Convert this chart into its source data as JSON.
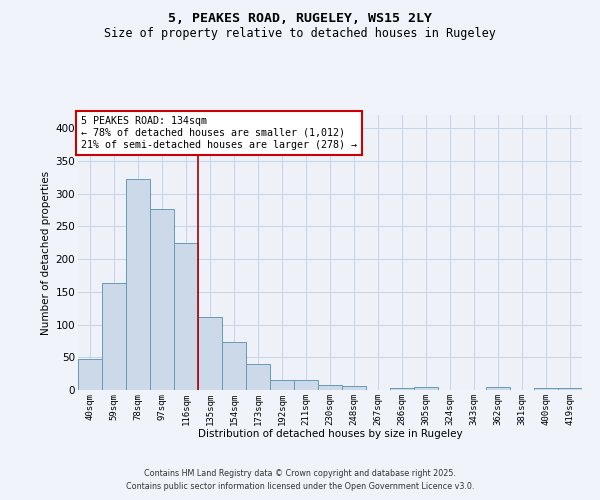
{
  "title1": "5, PEAKES ROAD, RUGELEY, WS15 2LY",
  "title2": "Size of property relative to detached houses in Rugeley",
  "xlabel": "Distribution of detached houses by size in Rugeley",
  "ylabel": "Number of detached properties",
  "bar_labels": [
    "40sqm",
    "59sqm",
    "78sqm",
    "97sqm",
    "116sqm",
    "135sqm",
    "154sqm",
    "173sqm",
    "192sqm",
    "211sqm",
    "230sqm",
    "248sqm",
    "267sqm",
    "286sqm",
    "305sqm",
    "324sqm",
    "343sqm",
    "362sqm",
    "381sqm",
    "400sqm",
    "419sqm"
  ],
  "bar_values": [
    48,
    163,
    322,
    277,
    224,
    112,
    74,
    40,
    16,
    15,
    8,
    6,
    0,
    3,
    4,
    0,
    0,
    4,
    0,
    3,
    3
  ],
  "bar_color": "#ccd9e8",
  "bar_edge_color": "#6699bb",
  "vline_index": 4.5,
  "annotation_title": "5 PEAKES ROAD: 134sqm",
  "annotation_line1": "← 78% of detached houses are smaller (1,012)",
  "annotation_line2": "21% of semi-detached houses are larger (278) →",
  "vline_color": "#aa0000",
  "ylim": [
    0,
    420
  ],
  "yticks": [
    0,
    50,
    100,
    150,
    200,
    250,
    300,
    350,
    400
  ],
  "footer1": "Contains HM Land Registry data © Crown copyright and database right 2025.",
  "footer2": "Contains public sector information licensed under the Open Government Licence v3.0."
}
